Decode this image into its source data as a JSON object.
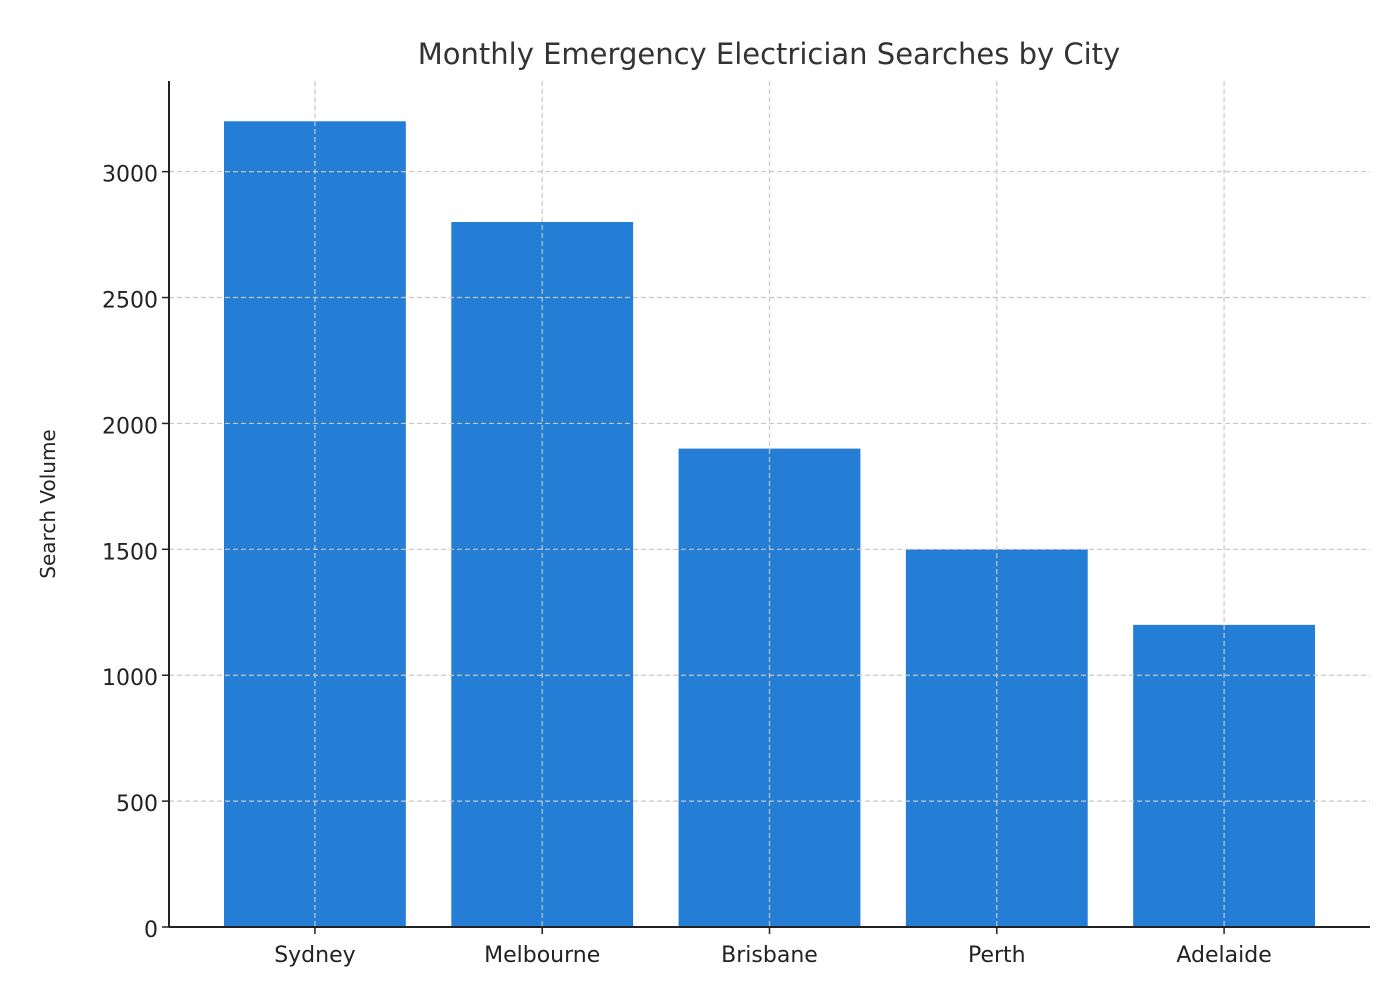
{
  "chart_data": {
    "type": "bar",
    "title": "Monthly Emergency Electrician Searches by City",
    "xlabel": "",
    "ylabel": "Search Volume",
    "categories": [
      "Sydney",
      "Melbourne",
      "Brisbane",
      "Perth",
      "Adelaide"
    ],
    "values": [
      3200,
      2800,
      1900,
      1500,
      1200
    ],
    "ylim": [
      0,
      3360
    ],
    "yticks": [
      0,
      500,
      1000,
      1500,
      2000,
      2500,
      3000
    ],
    "grid": true,
    "bar_color": "#247ED6"
  }
}
